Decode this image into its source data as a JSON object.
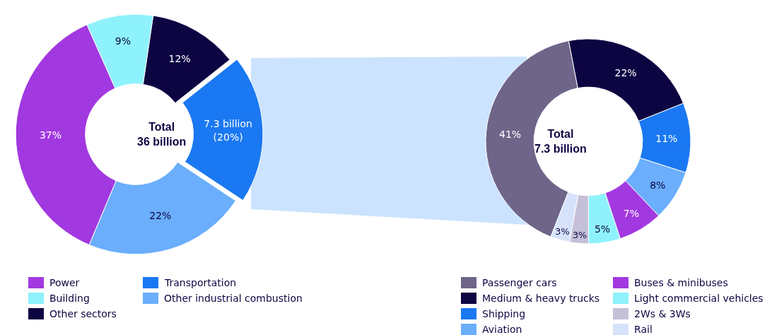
{
  "chart_data": [
    {
      "type": "donut",
      "categories": [
        "Power",
        "Building",
        "Other sectors",
        "Transportation",
        "Other industrial combustion"
      ],
      "values": [
        37,
        9,
        12,
        20,
        22
      ],
      "colors": [
        "#a238e0",
        "#8ef2fc",
        "#0d0442",
        "#1a78f2",
        "#6aaefc"
      ],
      "value_labels": [
        "37%",
        "9%",
        "12%",
        "7.3 billion\n(20%)",
        "22%"
      ],
      "annotations": [
        "Total\n36 billion"
      ],
      "legend": "bottom"
    },
    {
      "type": "donut",
      "categories": [
        "Passenger cars",
        "Medium & heavy trucks",
        "Shipping",
        "Aviation",
        "Buses & minibuses",
        "Light commercial vehicles",
        "2Ws & 3Ws",
        "Rail"
      ],
      "values": [
        41,
        22,
        11,
        8,
        7,
        5,
        3,
        3
      ],
      "colors": [
        "#6e6589",
        "#0d0442",
        "#1a78f2",
        "#6aaefc",
        "#a238e0",
        "#8ef2fc",
        "#c5c0d8",
        "#d6e2fa"
      ],
      "value_labels": [
        "41%",
        "22%",
        "11%",
        "8%",
        "7%",
        "5%",
        "3%",
        "3%"
      ],
      "annotations": [
        "Total\n7.3 billion"
      ],
      "legend": "bottom"
    }
  ]
}
